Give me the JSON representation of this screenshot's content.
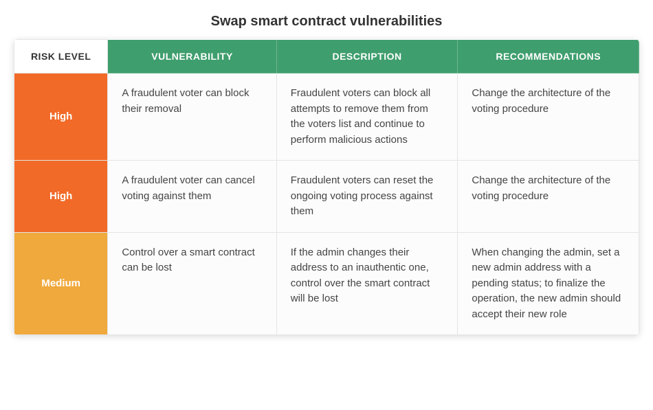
{
  "title": "Swap smart contract vulnerabilities",
  "headers": {
    "risk": "RISK LEVEL",
    "vulnerability": "VULNERABILITY",
    "description": "DESCRIPTION",
    "recommendations": "RECOMMENDATIONS"
  },
  "colors": {
    "green_header": "#3f9e6e",
    "high_risk": "#f26a27",
    "medium_risk": "#f0a93c",
    "text": "#444444",
    "title_text": "#333333",
    "border": "#e5e5e5",
    "row_bg": "#fcfcfc"
  },
  "rows": [
    {
      "risk_label": "High",
      "risk_color": "#f26a27",
      "vulnerability": "A fraudulent voter can block their removal",
      "description": "Fraudulent voters can block all attempts to remove them from the voters list and continue to perform malicious actions",
      "recommendations": "Change the architecture of the voting procedure"
    },
    {
      "risk_label": "High",
      "risk_color": "#f26a27",
      "vulnerability": "A fraudulent voter can cancel voting against them",
      "description": "Fraudulent voters can reset the ongoing voting process against them",
      "recommendations": "Change the architecture of the voting procedure"
    },
    {
      "risk_label": "Medium",
      "risk_color": "#f0a93c",
      "vulnerability": "Control over a smart contract can be lost",
      "description": "If the admin changes their address to an inauthentic one, control over the smart contract will be lost",
      "recommendations": "When changing the admin, set a new admin address with a pending status; to finalize the operation, the new admin should accept their new role"
    }
  ],
  "typography": {
    "title_fontsize": 20,
    "header_fontsize": 14,
    "cell_fontsize": 15
  }
}
